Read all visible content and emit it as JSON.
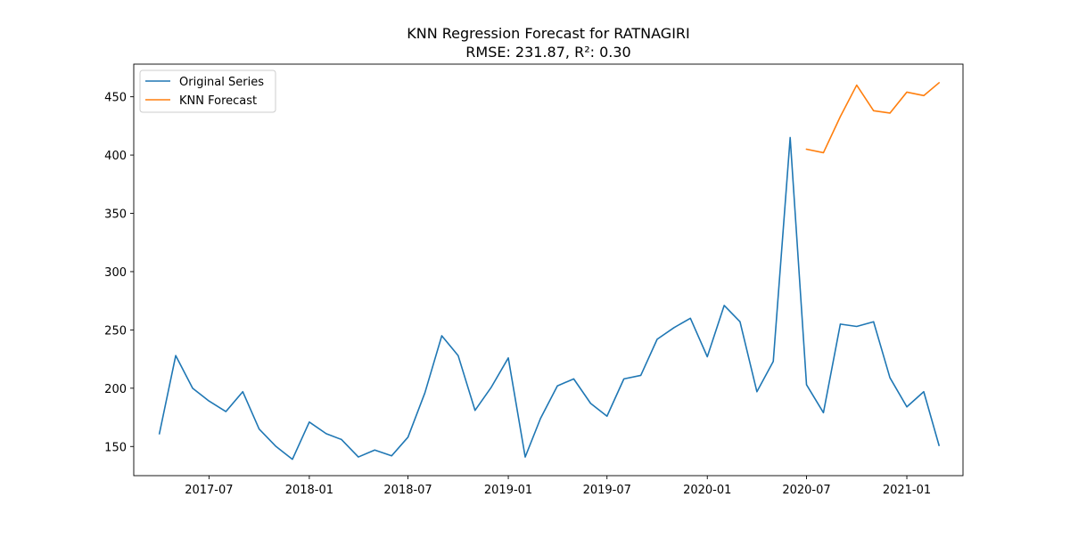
{
  "chart_data": {
    "type": "line",
    "title": "KNN Regression Forecast for RATNAGIRI",
    "subtitle": "RMSE: 231.87, R²: 0.30",
    "xlabel": "",
    "ylabel": "",
    "x_ticks": [
      "2017-07",
      "2018-01",
      "2018-07",
      "2019-01",
      "2019-07",
      "2020-01",
      "2020-07",
      "2021-01"
    ],
    "y_ticks": [
      150,
      200,
      250,
      300,
      350,
      400,
      450
    ],
    "xlim": [
      "2017-02-13",
      "2021-04-14"
    ],
    "ylim": [
      125,
      478
    ],
    "grid": false,
    "legend_position": "upper-left",
    "series": [
      {
        "name": "Original Series",
        "color": "#1f77b4",
        "x": [
          "2017-04-01",
          "2017-05-01",
          "2017-06-01",
          "2017-07-01",
          "2017-08-01",
          "2017-09-01",
          "2017-10-01",
          "2017-11-01",
          "2017-12-01",
          "2018-01-01",
          "2018-02-01",
          "2018-03-01",
          "2018-04-01",
          "2018-05-01",
          "2018-06-01",
          "2018-07-01",
          "2018-08-01",
          "2018-09-01",
          "2018-10-01",
          "2018-11-01",
          "2018-12-01",
          "2019-01-01",
          "2019-02-01",
          "2019-03-01",
          "2019-04-01",
          "2019-05-01",
          "2019-06-01",
          "2019-07-01",
          "2019-08-01",
          "2019-09-01",
          "2019-10-01",
          "2019-11-01",
          "2019-12-01",
          "2020-01-01",
          "2020-02-01",
          "2020-03-01",
          "2020-04-01",
          "2020-05-01",
          "2020-06-01",
          "2020-07-01",
          "2020-08-01",
          "2020-09-01",
          "2020-10-01",
          "2020-11-01",
          "2020-12-01",
          "2021-01-01",
          "2021-02-01",
          "2021-03-01"
        ],
        "values": [
          161,
          228,
          200,
          189,
          180,
          197,
          165,
          150,
          139,
          171,
          161,
          156,
          141,
          147,
          142,
          158,
          196,
          245,
          228,
          181,
          201,
          226,
          141,
          174,
          202,
          208,
          187,
          176,
          208,
          211,
          242,
          252,
          260,
          227,
          271,
          257,
          197,
          223,
          415,
          203,
          179,
          255,
          253,
          257,
          209,
          184,
          197,
          151
        ]
      },
      {
        "name": "KNN Forecast",
        "color": "#ff7f0e",
        "x": [
          "2020-07-01",
          "2020-08-01",
          "2020-09-01",
          "2020-10-01",
          "2020-11-01",
          "2020-12-01",
          "2021-01-01",
          "2021-02-01",
          "2021-03-01"
        ],
        "values": [
          405,
          402,
          433,
          460,
          438,
          436,
          454,
          451,
          462
        ]
      }
    ]
  }
}
